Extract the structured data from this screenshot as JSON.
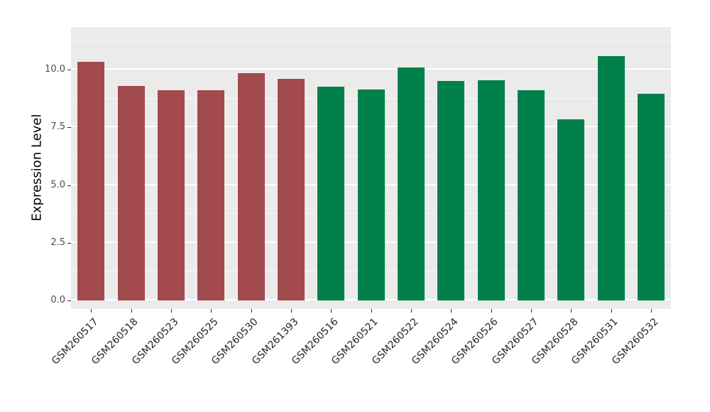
{
  "chart_data": {
    "type": "bar",
    "title": "",
    "xlabel": "",
    "ylabel": "Expression Level",
    "categories": [
      "GSM260517",
      "GSM260518",
      "GSM260523",
      "GSM260525",
      "GSM260530",
      "GSM261393",
      "GSM260516",
      "GSM260521",
      "GSM260522",
      "GSM260524",
      "GSM260526",
      "GSM260527",
      "GSM260528",
      "GSM260531",
      "GSM260532"
    ],
    "values": [
      10.35,
      9.3,
      9.1,
      9.1,
      9.85,
      9.6,
      9.25,
      9.15,
      10.1,
      9.5,
      9.55,
      9.1,
      7.85,
      10.6,
      8.95
    ],
    "bar_colors": [
      "#A34A4F",
      "#A34A4F",
      "#A34A4F",
      "#A34A4F",
      "#A34A4F",
      "#A34A4F",
      "#00804A",
      "#00804A",
      "#00804A",
      "#00804A",
      "#00804A",
      "#00804A",
      "#00804A",
      "#00804A",
      "#00804A"
    ],
    "groups": {
      "red": "#A34A4F",
      "green": "#00804A"
    },
    "ylim": [
      0,
      11.8
    ],
    "ytick_labels": [
      "0.0",
      "2.5",
      "5.0",
      "7.5",
      "10.0"
    ],
    "ytick_values": [
      0,
      2.5,
      5.0,
      7.5,
      10.0
    ],
    "ytick_minor_values": [
      1.25,
      3.75,
      6.25,
      8.75,
      11.25
    ],
    "panel_background": "#EBEBEB",
    "gridline_color": "#FFFFFF",
    "legend": "none"
  }
}
